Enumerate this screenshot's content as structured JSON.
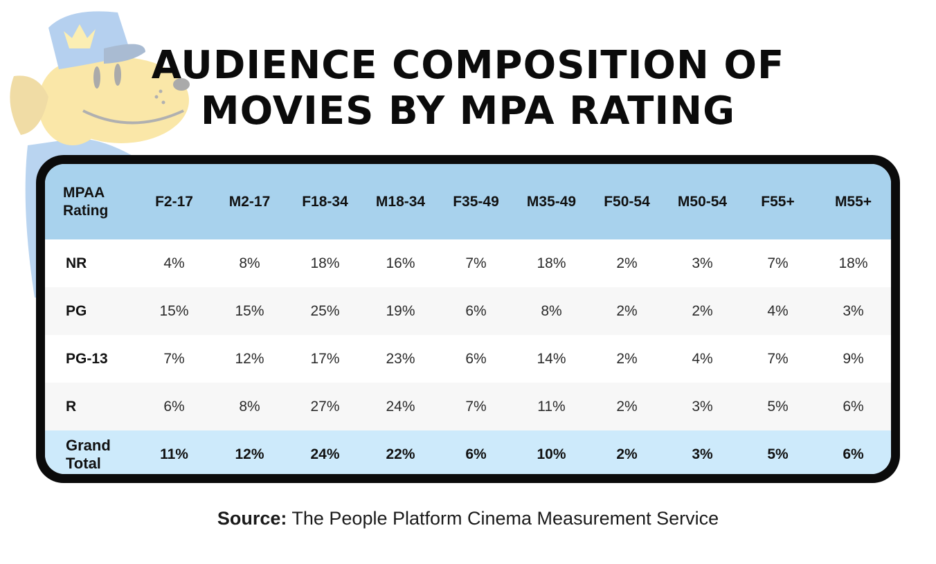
{
  "title": {
    "line1": "AUDIENCE COMPOSITION OF",
    "line2": "MOVIES BY MPA RATING"
  },
  "source": {
    "label": "Source:",
    "text": "The People Platform Cinema Measurement Service"
  },
  "chart_data": {
    "type": "table",
    "title": "AUDIENCE COMPOSITION OF MOVIES BY MPA RATING",
    "corner_header": [
      "MPAA",
      "Rating"
    ],
    "columns": [
      "F2-17",
      "M2-17",
      "F18-34",
      "M18-34",
      "F35-49",
      "M35-49",
      "F50-54",
      "M50-54",
      "F55+",
      "M55+"
    ],
    "rows": [
      {
        "label": [
          "NR"
        ],
        "values": [
          "4%",
          "8%",
          "18%",
          "16%",
          "7%",
          "18%",
          "2%",
          "3%",
          "7%",
          "18%"
        ]
      },
      {
        "label": [
          "PG"
        ],
        "values": [
          "15%",
          "15%",
          "25%",
          "19%",
          "6%",
          "8%",
          "2%",
          "2%",
          "4%",
          "3%"
        ]
      },
      {
        "label": [
          "PG-13"
        ],
        "values": [
          "7%",
          "12%",
          "17%",
          "23%",
          "6%",
          "14%",
          "2%",
          "4%",
          "7%",
          "9%"
        ]
      },
      {
        "label": [
          "R"
        ],
        "values": [
          "6%",
          "8%",
          "27%",
          "24%",
          "7%",
          "11%",
          "2%",
          "3%",
          "5%",
          "6%"
        ]
      },
      {
        "label": [
          "Grand",
          "Total"
        ],
        "values": [
          "11%",
          "12%",
          "24%",
          "22%",
          "6%",
          "10%",
          "2%",
          "3%",
          "5%",
          "6%"
        ],
        "total": true
      }
    ]
  },
  "colors": {
    "header_bg": "#a8d2ed",
    "total_bg": "#cdeafb",
    "frame": "#0b0b0b"
  }
}
